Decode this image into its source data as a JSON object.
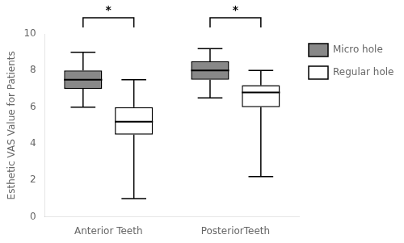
{
  "chart_data": {
    "type": "boxplot",
    "categories": [
      "Anterior Teeth",
      "PosteriorTeeth"
    ],
    "series": [
      {
        "name": "Micro hole",
        "color": "#888888",
        "values": [
          {
            "min": 6.0,
            "q1": 7.0,
            "median": 7.5,
            "q3": 8.0,
            "max": 9.0
          },
          {
            "min": 6.5,
            "q1": 7.5,
            "median": 8.0,
            "q3": 8.5,
            "max": 9.2
          }
        ]
      },
      {
        "name": "Regular hole",
        "color": "#ffffff",
        "values": [
          {
            "min": 1.0,
            "q1": 4.5,
            "median": 5.2,
            "q3": 6.0,
            "max": 7.5
          },
          {
            "min": 2.2,
            "q1": 6.0,
            "median": 6.8,
            "q3": 7.2,
            "max": 8.0
          }
        ]
      }
    ],
    "ylabel": "Esthetic VAS Value for Patients",
    "ylim": [
      0,
      10
    ],
    "yticks": [
      0,
      2,
      4,
      6,
      8,
      10
    ],
    "grid": false,
    "legend": "right",
    "annotations": [
      {
        "text": "*",
        "category": "Anterior Teeth",
        "between": [
          "Micro hole",
          "Regular hole"
        ]
      },
      {
        "text": "*",
        "category": "PosteriorTeeth",
        "between": [
          "Micro hole",
          "Regular hole"
        ]
      }
    ]
  }
}
